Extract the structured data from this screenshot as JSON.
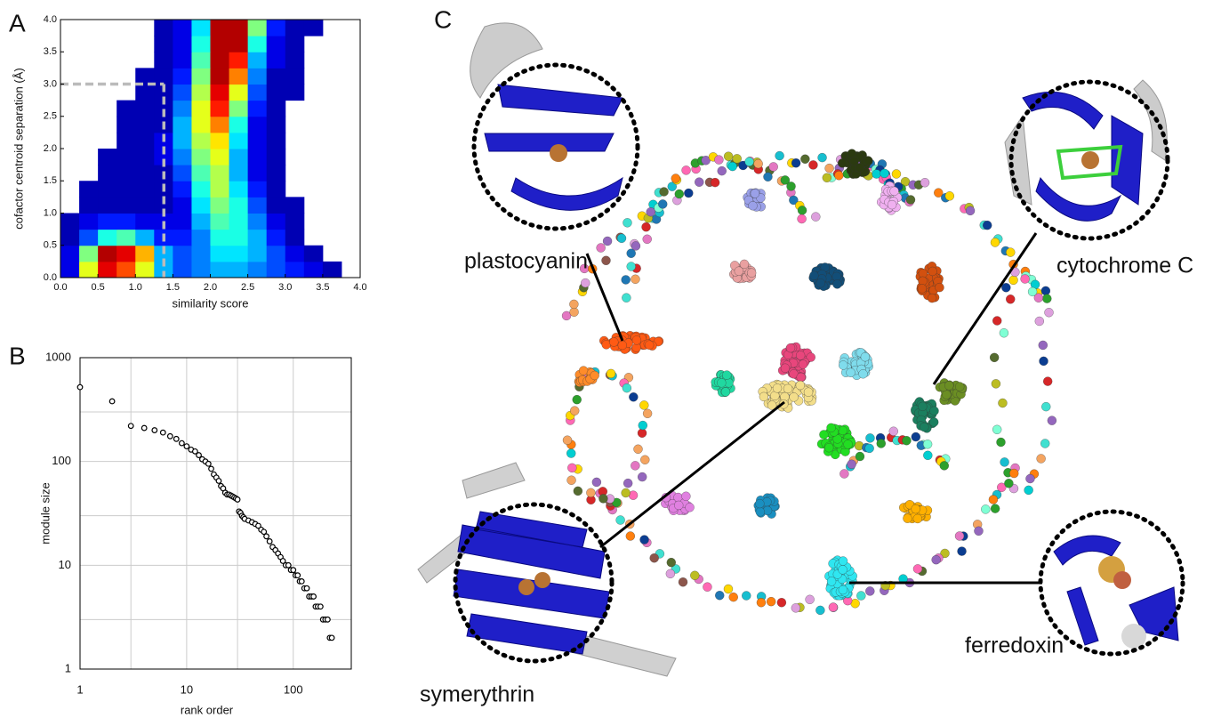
{
  "chart_data": [
    {
      "type": "heatmap",
      "panel": "A",
      "xlabel": "similarity score",
      "ylabel": "cofactor centroid separation (Å)",
      "xlim": [
        0,
        4
      ],
      "ylim": [
        0,
        4
      ],
      "xticks": [
        {
          "value": 0,
          "label": "0.0"
        },
        {
          "value": 0.5,
          "label": "0.5"
        },
        {
          "value": 1,
          "label": "1.0"
        },
        {
          "value": 1.5,
          "label": "1.5"
        },
        {
          "value": 2,
          "label": "2.0"
        },
        {
          "value": 2.5,
          "label": "2.5"
        },
        {
          "value": 3,
          "label": "3.0"
        },
        {
          "value": 3.5,
          "label": "3.5"
        },
        {
          "value": 4,
          "label": "4.0"
        }
      ],
      "yticks": [
        {
          "value": 0,
          "label": "0.0"
        },
        {
          "value": 0.5,
          "label": "0.5"
        },
        {
          "value": 1,
          "label": "1.0"
        },
        {
          "value": 1.5,
          "label": "1.5"
        },
        {
          "value": 2,
          "label": "2.0"
        },
        {
          "value": 2.5,
          "label": "2.5"
        },
        {
          "value": 3,
          "label": "3.0"
        },
        {
          "value": 3.5,
          "label": "3.5"
        },
        {
          "value": 4,
          "label": "4.0"
        }
      ],
      "colormap": "jet",
      "z": [
        [
          0.1,
          0.6,
          0.9,
          0.8,
          0.6,
          0.3,
          0.2,
          0.25,
          0.3,
          0.3,
          0.25,
          0.2,
          0.15,
          0.1,
          0.05,
          null
        ],
        [
          0.1,
          0.5,
          0.95,
          0.9,
          0.7,
          0.3,
          0.2,
          0.25,
          0.35,
          0.35,
          0.3,
          0.2,
          0.1,
          0.05,
          null,
          null
        ],
        [
          0.05,
          0.2,
          0.4,
          0.45,
          0.3,
          0.15,
          0.15,
          0.25,
          0.4,
          0.4,
          0.3,
          0.15,
          0.05,
          null,
          null,
          null
        ],
        [
          0.05,
          0.1,
          0.15,
          0.15,
          0.1,
          0.1,
          0.1,
          0.3,
          0.45,
          0.4,
          0.25,
          0.1,
          0.05,
          null,
          null,
          null
        ],
        [
          null,
          0.05,
          0.05,
          0.05,
          0.05,
          0.05,
          0.1,
          0.35,
          0.5,
          0.4,
          0.2,
          0.05,
          0.05,
          null,
          null,
          null
        ],
        [
          null,
          0.05,
          0.05,
          0.05,
          0.05,
          0.05,
          0.15,
          0.4,
          0.55,
          0.35,
          0.15,
          0.05,
          null,
          null,
          null,
          null
        ],
        [
          null,
          null,
          0.05,
          0.05,
          0.05,
          0.05,
          0.2,
          0.45,
          0.55,
          0.3,
          0.1,
          0.05,
          null,
          null,
          null,
          null
        ],
        [
          null,
          null,
          0.05,
          0.05,
          0.05,
          0.1,
          0.25,
          0.5,
          0.6,
          0.3,
          0.1,
          0.05,
          null,
          null,
          null,
          null
        ],
        [
          null,
          null,
          null,
          0.05,
          0.05,
          0.1,
          0.3,
          0.55,
          0.65,
          0.35,
          0.1,
          0.05,
          null,
          null,
          null,
          null
        ],
        [
          null,
          null,
          null,
          0.05,
          0.05,
          0.05,
          0.3,
          0.6,
          0.75,
          0.4,
          0.1,
          0.05,
          null,
          null,
          null,
          null
        ],
        [
          null,
          null,
          null,
          0.05,
          0.05,
          0.05,
          0.25,
          0.6,
          0.85,
          0.5,
          0.15,
          0.05,
          null,
          null,
          null,
          null
        ],
        [
          null,
          null,
          null,
          null,
          0.05,
          0.05,
          0.2,
          0.55,
          0.9,
          0.6,
          0.2,
          0.05,
          0.05,
          null,
          null,
          null
        ],
        [
          null,
          null,
          null,
          null,
          0.05,
          0.05,
          0.15,
          0.5,
          0.95,
          0.75,
          0.25,
          0.05,
          0.05,
          null,
          null,
          null
        ],
        [
          null,
          null,
          null,
          null,
          null,
          0.05,
          0.1,
          0.45,
          0.95,
          0.85,
          0.3,
          0.1,
          0.05,
          null,
          null,
          null
        ],
        [
          null,
          null,
          null,
          null,
          null,
          0.05,
          0.1,
          0.4,
          0.95,
          0.95,
          0.4,
          0.1,
          0.05,
          null,
          null,
          null
        ],
        [
          null,
          null,
          null,
          null,
          null,
          0.05,
          0.1,
          0.35,
          0.95,
          0.95,
          0.5,
          0.15,
          0.05,
          0.05,
          null,
          null
        ]
      ],
      "cutoff_x": 1.38,
      "cutoff_y": 3.0,
      "cutoff_color": "#bbbbbb"
    },
    {
      "type": "scatter",
      "panel": "B",
      "xlabel": "rank order",
      "ylabel": "module size",
      "xscale": "log",
      "yscale": "log",
      "grid": true,
      "xlim": [
        1,
        350
      ],
      "ylim": [
        1,
        1000
      ],
      "xticks": [
        1,
        10,
        100
      ],
      "yticks": [
        1,
        10,
        100,
        1000
      ],
      "xminor": [
        3,
        30
      ],
      "yminor": [
        3,
        30,
        300
      ],
      "color": "#000000",
      "x": [
        1,
        2,
        3,
        4,
        5,
        6,
        7,
        8,
        9,
        10,
        11,
        12,
        13,
        14,
        15,
        16,
        17,
        18,
        19,
        20,
        21,
        22,
        23,
        24,
        25,
        26,
        27,
        28,
        29,
        30,
        31,
        32,
        33,
        34,
        35,
        38,
        41,
        44,
        47,
        50,
        53,
        56,
        60,
        64,
        68,
        72,
        76,
        80,
        85,
        90,
        95,
        100,
        105,
        110,
        115,
        120,
        127,
        134,
        141,
        148,
        155,
        162,
        170,
        180,
        190,
        200,
        210,
        220,
        230
      ],
      "y": [
        520,
        380,
        220,
        210,
        200,
        190,
        175,
        165,
        150,
        140,
        130,
        125,
        115,
        105,
        100,
        95,
        85,
        75,
        70,
        65,
        58,
        55,
        50,
        48,
        48,
        47,
        46,
        45,
        44,
        43,
        33,
        32,
        30,
        29,
        28,
        27,
        26,
        25,
        24,
        22,
        21,
        19,
        17,
        15,
        14,
        13,
        12,
        11,
        10,
        10,
        9,
        9,
        8,
        8,
        7,
        7,
        6,
        6,
        5,
        5,
        5,
        4,
        4,
        4,
        3,
        3,
        3,
        2,
        2
      ]
    }
  ],
  "network": {
    "panel": "C",
    "labels": [
      "plastocyanin",
      "cytochrome C",
      "symerythrin",
      "ferredoxin"
    ]
  }
}
